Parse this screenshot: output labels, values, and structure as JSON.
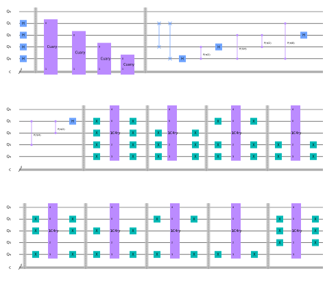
{
  "colors": {
    "h_gate": "#6fa4ff",
    "x_gate": "#05bab6",
    "multi_gate": "#bb8bff",
    "barrier": "#bdbdbd",
    "wire": "#222222"
  },
  "rows": [
    {
      "labels": {
        "q0": "Q₀",
        "q1": "Q₁",
        "q2": "Q₂",
        "q3": "Q₃",
        "q4": "Q₄",
        "c": "c"
      },
      "c_count": "4",
      "gates": [
        {
          "type": "h",
          "col": 0,
          "qubit": 1,
          "label": "H"
        },
        {
          "type": "h",
          "col": 0,
          "qubit": 2,
          "label": "H"
        },
        {
          "type": "h",
          "col": 0,
          "qubit": 3,
          "label": "H"
        },
        {
          "type": "h",
          "col": 0,
          "qubit": 4,
          "label": "H"
        },
        {
          "type": "barrier",
          "col": 1
        },
        {
          "type": "multi",
          "col": 2,
          "from": 1,
          "to": 5,
          "label": "Cuary",
          "top": "0",
          "bottom": "1"
        },
        {
          "type": "multi",
          "col": 3,
          "from": 2,
          "to": 5,
          "label": "Cuary",
          "top": "0",
          "bottom": "1"
        },
        {
          "type": "multi",
          "col": 4,
          "from": 3,
          "to": 5,
          "label": "Cuary",
          "top": "0",
          "bottom": "1"
        },
        {
          "type": "multi",
          "col": 5,
          "from": 4,
          "to": 5,
          "label": "Cuany",
          "top": "0",
          "bottom": "1"
        },
        {
          "type": "barrier",
          "col": 6
        },
        {
          "type": "swap",
          "col": 7,
          "a": 1,
          "b": 3
        },
        {
          "type": "swap",
          "col": 8,
          "a": 1,
          "b": 4
        },
        {
          "type": "h",
          "col": 9,
          "qubit": 4,
          "label": "H"
        },
        {
          "type": "cp",
          "col": 10,
          "a": 3,
          "b": 4,
          "label": "P(π/2)"
        },
        {
          "type": "h",
          "col": 11,
          "qubit": 3,
          "label": "H"
        },
        {
          "type": "cp",
          "col": 12,
          "a": 2,
          "b": 4,
          "label": "P(π/4)"
        },
        {
          "type": "cp",
          "col": 13,
          "a": 2,
          "b": 3,
          "label": "P(π/2)"
        },
        {
          "type": "cp",
          "col": 14,
          "a": 1,
          "b": 4,
          "label": "P(π/8)"
        },
        {
          "type": "h",
          "col": 15,
          "qubit": 2,
          "label": "H"
        }
      ]
    },
    {
      "labels": {
        "q0": "Q₀",
        "q1": "Q₁",
        "q2": "Q₂",
        "q3": "Q₃",
        "q4": "Q₄",
        "c": "c"
      },
      "c_count": "4",
      "gates": [
        {
          "type": "cp",
          "col": 0,
          "a": 1,
          "b": 3,
          "label": "P(π/4)"
        },
        {
          "type": "cp",
          "col": 1,
          "a": 1,
          "b": 2,
          "label": "P(π/2)"
        },
        {
          "type": "h",
          "col": 2,
          "qubit": 1,
          "label": "H"
        },
        {
          "type": "barrier",
          "col": 3
        },
        {
          "type": "x",
          "col": 4,
          "qubit": 1,
          "label": "X"
        },
        {
          "type": "x",
          "col": 4,
          "qubit": 2,
          "label": "X"
        },
        {
          "type": "x",
          "col": 4,
          "qubit": 3,
          "label": "X"
        },
        {
          "type": "x",
          "col": 4,
          "qubit": 4,
          "label": "X"
        },
        {
          "type": "multi",
          "col": 5,
          "from": 0,
          "to": 4,
          "label": "1C4ry",
          "top": "4",
          "pins": [
            "0",
            "1",
            "2",
            "3"
          ]
        },
        {
          "type": "x",
          "col": 6,
          "qubit": 1,
          "label": "X"
        },
        {
          "type": "x",
          "col": 6,
          "qubit": 2,
          "label": "X"
        },
        {
          "type": "x",
          "col": 6,
          "qubit": 3,
          "label": "X"
        },
        {
          "type": "x",
          "col": 6,
          "qubit": 4,
          "label": "X"
        },
        {
          "type": "barrier",
          "col": 7
        },
        {
          "type": "x",
          "col": 8,
          "qubit": 2,
          "label": "X"
        },
        {
          "type": "x",
          "col": 8,
          "qubit": 3,
          "label": "X"
        },
        {
          "type": "x",
          "col": 8,
          "qubit": 4,
          "label": "X"
        },
        {
          "type": "multi",
          "col": 9,
          "from": 0,
          "to": 4,
          "label": "1C4ry",
          "top": "4",
          "pins": [
            "0",
            "1",
            "2",
            "3"
          ]
        },
        {
          "type": "x",
          "col": 10,
          "qubit": 2,
          "label": "X"
        },
        {
          "type": "x",
          "col": 10,
          "qubit": 3,
          "label": "X"
        },
        {
          "type": "x",
          "col": 10,
          "qubit": 4,
          "label": "X"
        },
        {
          "type": "barrier",
          "col": 11
        },
        {
          "type": "x",
          "col": 12,
          "qubit": 1,
          "label": "X"
        },
        {
          "type": "x",
          "col": 12,
          "qubit": 3,
          "label": "X"
        },
        {
          "type": "x",
          "col": 12,
          "qubit": 4,
          "label": "X"
        },
        {
          "type": "multi",
          "col": 13,
          "from": 0,
          "to": 4,
          "label": "1C4ry",
          "top": "4",
          "pins": [
            "0",
            "1",
            "2",
            "3"
          ]
        },
        {
          "type": "x",
          "col": 14,
          "qubit": 1,
          "label": "X"
        },
        {
          "type": "x",
          "col": 14,
          "qubit": 3,
          "label": "X"
        },
        {
          "type": "x",
          "col": 14,
          "qubit": 4,
          "label": "X"
        },
        {
          "type": "barrier",
          "col": 15
        },
        {
          "type": "x",
          "col": 16,
          "qubit": 3,
          "label": "X"
        },
        {
          "type": "x",
          "col": 16,
          "qubit": 4,
          "label": "X"
        },
        {
          "type": "multi",
          "col": 17,
          "from": 0,
          "to": 4,
          "label": "1C4ry",
          "top": "4",
          "pins": [
            "0",
            "1",
            "2",
            "3"
          ]
        },
        {
          "type": "x",
          "col": 18,
          "qubit": 3,
          "label": "X"
        },
        {
          "type": "x",
          "col": 18,
          "qubit": 4,
          "label": "X"
        }
      ]
    },
    {
      "labels": {
        "q0": "Q₀",
        "q1": "Q₁",
        "q2": "Q₂",
        "q3": "Q₃",
        "q4": "Q₄",
        "c": "c"
      },
      "c_count": "4",
      "gates": [
        {
          "type": "barrier",
          "col": 0
        },
        {
          "type": "x",
          "col": 1,
          "qubit": 1,
          "label": "X"
        },
        {
          "type": "x",
          "col": 1,
          "qubit": 2,
          "label": "X"
        },
        {
          "type": "x",
          "col": 1,
          "qubit": 4,
          "label": "X"
        },
        {
          "type": "multi",
          "col": 2,
          "from": 0,
          "to": 4,
          "label": "1C4ry",
          "top": "4",
          "pins": [
            "0",
            "1",
            "2",
            "3"
          ]
        },
        {
          "type": "x",
          "col": 3,
          "qubit": 1,
          "label": "X"
        },
        {
          "type": "x",
          "col": 3,
          "qubit": 2,
          "label": "X"
        },
        {
          "type": "x",
          "col": 3,
          "qubit": 4,
          "label": "X"
        },
        {
          "type": "barrier",
          "col": 4
        },
        {
          "type": "x",
          "col": 5,
          "qubit": 2,
          "label": "X"
        },
        {
          "type": "x",
          "col": 5,
          "qubit": 4,
          "label": "X"
        },
        {
          "type": "multi",
          "col": 6,
          "from": 0,
          "to": 4,
          "label": "1C4ry",
          "top": "4",
          "pins": [
            "0",
            "1",
            "2",
            "3"
          ]
        },
        {
          "type": "x",
          "col": 7,
          "qubit": 2,
          "label": "X"
        },
        {
          "type": "x",
          "col": 7,
          "qubit": 4,
          "label": "X"
        },
        {
          "type": "barrier",
          "col": 8
        },
        {
          "type": "x",
          "col": 9,
          "qubit": 1,
          "label": "X"
        },
        {
          "type": "x",
          "col": 9,
          "qubit": 4,
          "label": "X"
        },
        {
          "type": "multi",
          "col": 10,
          "from": 0,
          "to": 4,
          "label": "1C4ry",
          "top": "4",
          "pins": [
            "0",
            "1",
            "2",
            "3"
          ]
        },
        {
          "type": "x",
          "col": 11,
          "qubit": 1,
          "label": "X"
        },
        {
          "type": "x",
          "col": 11,
          "qubit": 4,
          "label": "X"
        },
        {
          "type": "barrier",
          "col": 12
        },
        {
          "type": "x",
          "col": 13,
          "qubit": 4,
          "label": "X"
        },
        {
          "type": "multi",
          "col": 14,
          "from": 0,
          "to": 4,
          "label": "1C4ry",
          "top": "4",
          "pins": [
            "0",
            "1",
            "2",
            "3"
          ]
        },
        {
          "type": "x",
          "col": 15,
          "qubit": 4,
          "label": "X"
        },
        {
          "type": "barrier",
          "col": 16
        },
        {
          "type": "x",
          "col": 17,
          "qubit": 1,
          "label": "X"
        },
        {
          "type": "x",
          "col": 17,
          "qubit": 2,
          "label": "X"
        },
        {
          "type": "x",
          "col": 17,
          "qubit": 3,
          "label": "X"
        },
        {
          "type": "multi",
          "col": 18,
          "from": 0,
          "to": 4,
          "label": "1C4ry",
          "top": "4",
          "pins": [
            "0",
            "1",
            "2",
            "3"
          ]
        },
        {
          "type": "x",
          "col": 19,
          "qubit": 1,
          "label": "X"
        },
        {
          "type": "x",
          "col": 19,
          "qubit": 2,
          "label": "X"
        },
        {
          "type": "x",
          "col": 19,
          "qubit": 3,
          "label": "X"
        }
      ]
    }
  ]
}
